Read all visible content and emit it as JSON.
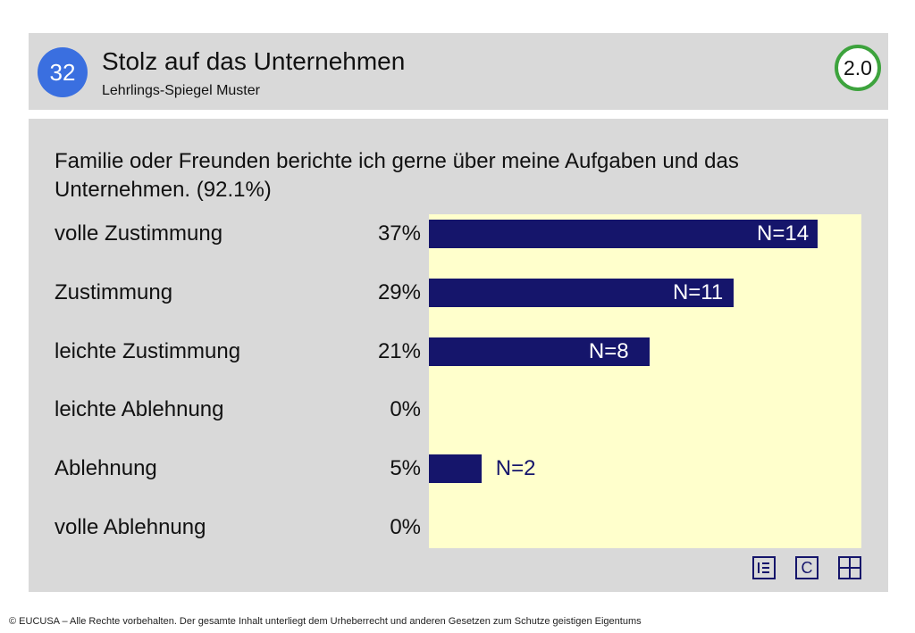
{
  "header": {
    "badge": "32",
    "title": "Stolz auf das Unternehmen",
    "subtitle": "Lehrlings-Spiegel Muster",
    "version": "2.0"
  },
  "question": "Familie oder Freunden berichte ich gerne über meine Aufgaben und das Unternehmen. (92.1%)",
  "chart_data": {
    "type": "bar",
    "orientation": "horizontal",
    "categories": [
      "volle Zustimmung",
      "Zustimmung",
      "leichte Zustimmung",
      "leichte Ablehnung",
      "Ablehnung",
      "volle Ablehnung"
    ],
    "percent_labels": [
      "37%",
      "29%",
      "21%",
      "0%",
      "5%",
      "0%"
    ],
    "values": [
      37,
      29,
      21,
      0,
      5,
      0
    ],
    "n_labels": [
      "N=14",
      "N=11",
      "N=8",
      "",
      "N=2",
      ""
    ],
    "colors": {
      "bar": "#15156b",
      "plot_background": "#ffffcc"
    }
  },
  "icons": [
    "list-icon",
    "copyright-icon",
    "grid-icon"
  ],
  "icon_text": {
    "c": "C"
  },
  "footer": "© EUCUSA – Alle Rechte vorbehalten. Der gesamte Inhalt unterliegt dem Urheberrecht und anderen Gesetzen zum Schutze geistigen Eigentums"
}
